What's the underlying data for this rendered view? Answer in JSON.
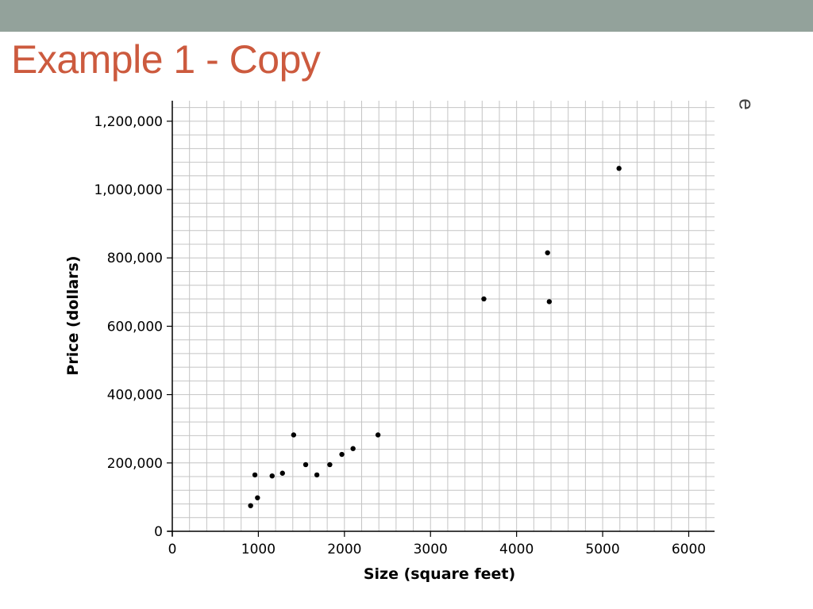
{
  "slide": {
    "title": "Example 1 - Copy",
    "clipped_glyph": "e"
  },
  "colors": {
    "top_bar": "#93a29b",
    "title": "#cc5a3e",
    "grid": "#c4c4c4",
    "point": "#000000"
  },
  "chart_data": {
    "type": "scatter",
    "xlabel": "Size (square feet)",
    "ylabel": "Price (dollars)",
    "xlim": [
      0,
      6300
    ],
    "ylim": [
      0,
      1260000
    ],
    "x_ticks": [
      0,
      1000,
      2000,
      3000,
      4000,
      5000,
      6000
    ],
    "x_tick_labels": [
      "0",
      "1000",
      "2000",
      "3000",
      "4000",
      "5000",
      "6000"
    ],
    "y_ticks": [
      0,
      200000,
      400000,
      600000,
      800000,
      1000000,
      1200000
    ],
    "y_tick_labels": [
      "0",
      "200,000",
      "400,000",
      "600,000",
      "800,000",
      "1,000,000",
      "1,200,000"
    ],
    "grid": true,
    "grid_x_step": 200,
    "grid_y_step": 40000,
    "series": [
      {
        "points": [
          {
            "x": 910,
            "y": 75000
          },
          {
            "x": 960,
            "y": 165000
          },
          {
            "x": 990,
            "y": 98000
          },
          {
            "x": 1160,
            "y": 162000
          },
          {
            "x": 1280,
            "y": 170000
          },
          {
            "x": 1410,
            "y": 282000
          },
          {
            "x": 1550,
            "y": 195000
          },
          {
            "x": 1680,
            "y": 165000
          },
          {
            "x": 1830,
            "y": 195000
          },
          {
            "x": 1970,
            "y": 225000
          },
          {
            "x": 2100,
            "y": 242000
          },
          {
            "x": 2390,
            "y": 282000
          },
          {
            "x": 3620,
            "y": 680000
          },
          {
            "x": 4360,
            "y": 815000
          },
          {
            "x": 4380,
            "y": 672000
          },
          {
            "x": 5190,
            "y": 1062000
          }
        ]
      }
    ]
  }
}
